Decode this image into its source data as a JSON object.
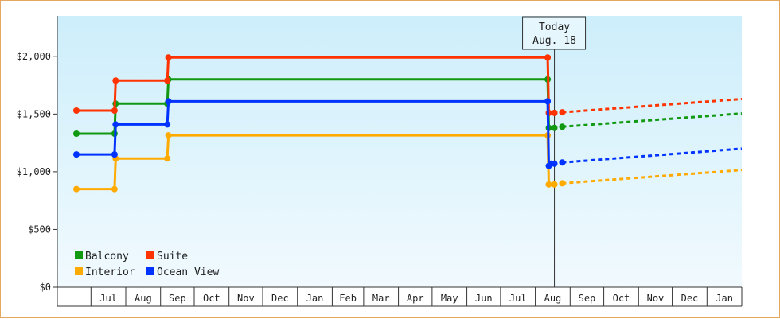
{
  "chart_data": {
    "type": "line",
    "title": "",
    "xlabel": "",
    "ylabel": "",
    "ylim": [
      0,
      2350
    ],
    "y_ticks": [
      0,
      500,
      1000,
      1500,
      2000
    ],
    "y_tick_labels": [
      "$0",
      "$500",
      "$1,000",
      "$1,500",
      "$2,000"
    ],
    "x_range": [
      "2024-06-01",
      "2026-02-01"
    ],
    "months": [
      {
        "label": "Jul",
        "start": "2024-07-01"
      },
      {
        "label": "Aug",
        "start": "2024-08-01"
      },
      {
        "label": "Sep",
        "start": "2024-09-01"
      },
      {
        "label": "Oct",
        "start": "2024-10-01"
      },
      {
        "label": "Nov",
        "start": "2024-11-01"
      },
      {
        "label": "Dec",
        "start": "2024-12-01"
      },
      {
        "label": "Jan",
        "start": "2025-01-01"
      },
      {
        "label": "Feb",
        "start": "2025-02-01"
      },
      {
        "label": "Mar",
        "start": "2025-03-01"
      },
      {
        "label": "Apr",
        "start": "2025-04-01"
      },
      {
        "label": "May",
        "start": "2025-05-01"
      },
      {
        "label": "Jun",
        "start": "2025-06-01"
      },
      {
        "label": "Jul",
        "start": "2025-07-01"
      },
      {
        "label": "Aug",
        "start": "2025-08-01"
      },
      {
        "label": "Sep",
        "start": "2025-09-01"
      },
      {
        "label": "Oct",
        "start": "2025-10-01"
      },
      {
        "label": "Nov",
        "start": "2025-11-01"
      },
      {
        "label": "Dec",
        "start": "2025-12-01"
      },
      {
        "label": "Jan",
        "start": "2026-01-01"
      },
      {
        "label": "",
        "start": "2026-02-01"
      }
    ],
    "today": {
      "label_line1": "Today",
      "label_line2": "Aug. 18",
      "date": "2025-08-18"
    },
    "legend": {
      "placement": "bottom-left"
    },
    "grid": false,
    "series": [
      {
        "name": "Balcony",
        "color": "#119911",
        "points": [
          {
            "x": "2024-06-18",
            "y": 1330
          },
          {
            "x": "2024-07-22",
            "y": 1330
          },
          {
            "x": "2024-07-23",
            "y": 1590
          },
          {
            "x": "2024-09-07",
            "y": 1590
          },
          {
            "x": "2024-09-08",
            "y": 1800
          },
          {
            "x": "2025-08-12",
            "y": 1800
          },
          {
            "x": "2025-08-13",
            "y": 1380
          },
          {
            "x": "2025-08-18",
            "y": 1380
          }
        ],
        "projection": [
          {
            "x": "2025-08-25",
            "y": 1390
          },
          {
            "x": "2026-02-01",
            "y": 1505
          }
        ]
      },
      {
        "name": "Suite",
        "color": "#ff3300",
        "points": [
          {
            "x": "2024-06-18",
            "y": 1530
          },
          {
            "x": "2024-07-22",
            "y": 1530
          },
          {
            "x": "2024-07-23",
            "y": 1790
          },
          {
            "x": "2024-09-07",
            "y": 1790
          },
          {
            "x": "2024-09-08",
            "y": 1990
          },
          {
            "x": "2025-08-12",
            "y": 1990
          },
          {
            "x": "2025-08-13",
            "y": 1510
          },
          {
            "x": "2025-08-18",
            "y": 1510
          }
        ],
        "projection": [
          {
            "x": "2025-08-25",
            "y": 1515
          },
          {
            "x": "2026-02-01",
            "y": 1630
          }
        ]
      },
      {
        "name": "Interior",
        "color": "#ffaa00",
        "points": [
          {
            "x": "2024-06-18",
            "y": 850
          },
          {
            "x": "2024-07-22",
            "y": 850
          },
          {
            "x": "2024-07-23",
            "y": 1115
          },
          {
            "x": "2024-09-07",
            "y": 1115
          },
          {
            "x": "2024-09-08",
            "y": 1315
          },
          {
            "x": "2025-08-12",
            "y": 1315
          },
          {
            "x": "2025-08-13",
            "y": 890
          },
          {
            "x": "2025-08-18",
            "y": 890
          }
        ],
        "projection": [
          {
            "x": "2025-08-25",
            "y": 900
          },
          {
            "x": "2026-02-01",
            "y": 1015
          }
        ]
      },
      {
        "name": "Ocean View",
        "color": "#0033ff",
        "points": [
          {
            "x": "2024-06-18",
            "y": 1150
          },
          {
            "x": "2024-07-22",
            "y": 1150
          },
          {
            "x": "2024-07-23",
            "y": 1410
          },
          {
            "x": "2024-09-07",
            "y": 1410
          },
          {
            "x": "2024-09-08",
            "y": 1610
          },
          {
            "x": "2025-08-12",
            "y": 1610
          },
          {
            "x": "2025-08-13",
            "y": 1050
          },
          {
            "x": "2025-08-15",
            "y": 1070
          },
          {
            "x": "2025-08-18",
            "y": 1070
          }
        ],
        "projection": [
          {
            "x": "2025-08-25",
            "y": 1080
          },
          {
            "x": "2026-02-01",
            "y": 1200
          }
        ]
      }
    ]
  }
}
